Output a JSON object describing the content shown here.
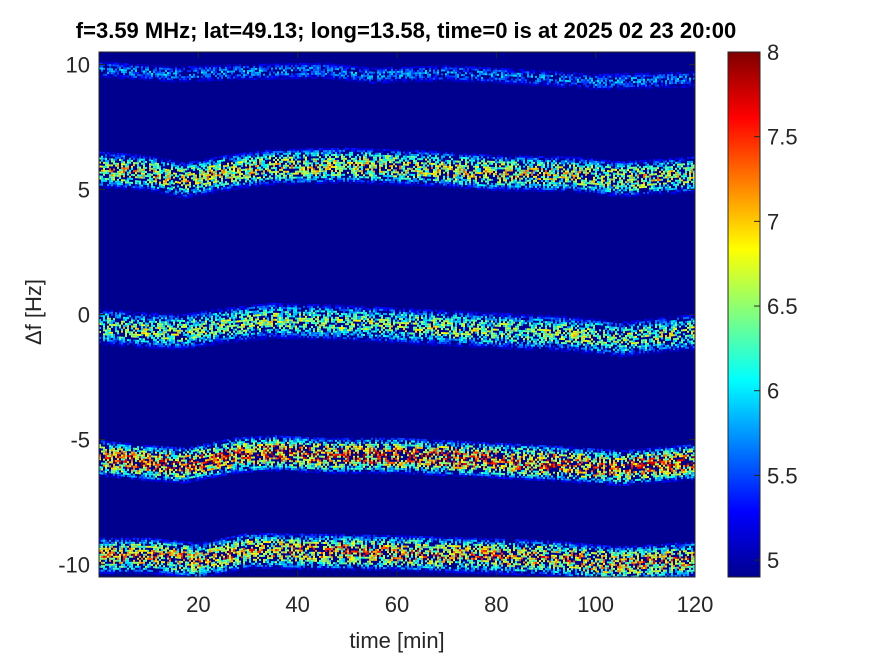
{
  "chart_data": {
    "type": "heatmap",
    "title": "f=3.59 MHz;  lat=49.13; long=13.58, time=0 is at 2025 02 23 20:00",
    "xlabel": "time [min]",
    "ylabel": "Δf [Hz]",
    "xlim": [
      0,
      120
    ],
    "ylim": [
      -10.5,
      10.5
    ],
    "clim": [
      4.9,
      8
    ],
    "colormap": "jet",
    "background_value": 4.9,
    "xticks": [
      20,
      40,
      60,
      80,
      100,
      120
    ],
    "yticks": [
      10,
      5,
      0,
      -5,
      -10
    ],
    "colorbar_ticks": [
      8,
      7.5,
      7,
      6.5,
      6,
      5.5,
      5
    ],
    "tick_labels": {
      "x": [
        "20",
        "40",
        "60",
        "80",
        "100",
        "120"
      ],
      "y": [
        "10",
        "5",
        "0",
        "-5",
        "-10"
      ],
      "colorbar": [
        "8",
        "7.5",
        "7",
        "6.5",
        "6",
        "5.5",
        "5"
      ]
    },
    "bands": [
      {
        "center_df": 9.8,
        "peak_value": 6.0,
        "path": [
          [
            0,
            9.85
          ],
          [
            15,
            9.65
          ],
          [
            30,
            9.75
          ],
          [
            45,
            9.8
          ],
          [
            55,
            9.6
          ],
          [
            70,
            9.7
          ],
          [
            85,
            9.55
          ],
          [
            100,
            9.35
          ],
          [
            120,
            9.45
          ]
        ]
      },
      {
        "center_df": 5.7,
        "peak_value": 7.3,
        "path": [
          [
            0,
            5.85
          ],
          [
            10,
            5.7
          ],
          [
            17,
            5.4
          ],
          [
            25,
            5.7
          ],
          [
            35,
            5.95
          ],
          [
            50,
            6.0
          ],
          [
            65,
            5.9
          ],
          [
            80,
            5.7
          ],
          [
            95,
            5.65
          ],
          [
            105,
            5.45
          ],
          [
            120,
            5.65
          ]
        ]
      },
      {
        "center_df": -0.5,
        "peak_value": 7.0,
        "path": [
          [
            0,
            -0.45
          ],
          [
            10,
            -0.6
          ],
          [
            17,
            -0.65
          ],
          [
            25,
            -0.4
          ],
          [
            35,
            -0.2
          ],
          [
            50,
            -0.3
          ],
          [
            65,
            -0.45
          ],
          [
            80,
            -0.6
          ],
          [
            95,
            -0.75
          ],
          [
            105,
            -0.95
          ],
          [
            120,
            -0.65
          ]
        ]
      },
      {
        "center_df": -5.7,
        "peak_value": 7.9,
        "path": [
          [
            0,
            -5.7
          ],
          [
            10,
            -5.9
          ],
          [
            17,
            -6.0
          ],
          [
            27,
            -5.6
          ],
          [
            35,
            -5.5
          ],
          [
            45,
            -5.6
          ],
          [
            60,
            -5.6
          ],
          [
            75,
            -5.75
          ],
          [
            90,
            -5.9
          ],
          [
            105,
            -6.1
          ],
          [
            120,
            -5.85
          ]
        ]
      },
      {
        "center_df": -9.6,
        "peak_value": 7.6,
        "path": [
          [
            0,
            -9.6
          ],
          [
            10,
            -9.6
          ],
          [
            20,
            -9.8
          ],
          [
            30,
            -9.4
          ],
          [
            45,
            -9.45
          ],
          [
            60,
            -9.5
          ],
          [
            75,
            -9.6
          ],
          [
            90,
            -9.7
          ],
          [
            105,
            -9.95
          ],
          [
            120,
            -9.75
          ]
        ]
      }
    ]
  }
}
